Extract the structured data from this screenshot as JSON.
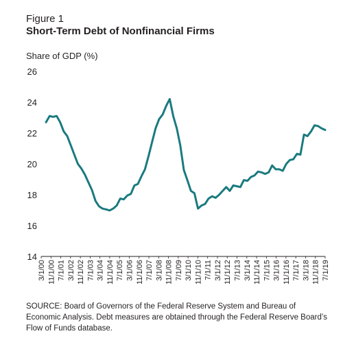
{
  "figure": {
    "label": "Figure 1",
    "title": "Short-Term Debt of Nonfinancial Firms",
    "source": "SOURCE: Board of Governors of the Federal Reserve System and Bureau of Economic Analysis. Debt measures are obtained through the Federal Reserve Board’s Flow of Funds database."
  },
  "chart_data": {
    "type": "line",
    "title": "Short-Term Debt of Nonfinancial Firms",
    "xlabel": "",
    "ylabel": "Share of GDP (%)",
    "ylim": [
      14,
      26
    ],
    "yticks": [
      14,
      16,
      18,
      20,
      22,
      24,
      26
    ],
    "grid": false,
    "line_color": "#1a7a7f",
    "xticks": [
      "3/1/00",
      "11/1/00",
      "7/1/01",
      "3/1/02",
      "11/1/02",
      "7/1/03",
      "3/1/04",
      "11/1/04",
      "7/1/05",
      "3/1/06",
      "11/1/06",
      "7/1/07",
      "3/1/08",
      "11/1/08",
      "7/1/09",
      "3/1/10",
      "11/1/10",
      "7/1/11",
      "3/1/12",
      "11/1/12",
      "7/1/13",
      "3/1/14",
      "11/1/14",
      "7/1/15",
      "3/1/16",
      "11/1/16",
      "7/1/17",
      "3/1/18",
      "11/1/18",
      "7/1/19"
    ],
    "series": [
      {
        "x": [
          "2000Q1",
          "2000Q2",
          "2000Q3",
          "2000Q4",
          "2001Q1",
          "2001Q2",
          "2001Q3",
          "2001Q4",
          "2002Q1",
          "2002Q2",
          "2002Q3",
          "2002Q4",
          "2003Q1",
          "2003Q2",
          "2003Q3",
          "2003Q4",
          "2004Q1",
          "2004Q2",
          "2004Q3",
          "2004Q4",
          "2005Q1",
          "2005Q2",
          "2005Q3",
          "2005Q4",
          "2006Q1",
          "2006Q2",
          "2006Q3",
          "2006Q4",
          "2007Q1",
          "2007Q2",
          "2007Q3",
          "2007Q4",
          "2008Q1",
          "2008Q2",
          "2008Q3",
          "2008Q4",
          "2009Q1",
          "2009Q2",
          "2009Q3",
          "2009Q4",
          "2010Q1",
          "2010Q2",
          "2010Q3",
          "2010Q4",
          "2011Q1",
          "2011Q2",
          "2011Q3",
          "2011Q4",
          "2012Q1",
          "2012Q2",
          "2012Q3",
          "2012Q4",
          "2013Q1",
          "2013Q2",
          "2013Q3",
          "2013Q4",
          "2014Q1",
          "2014Q2",
          "2014Q3",
          "2014Q4",
          "2015Q1",
          "2015Q2",
          "2015Q3",
          "2015Q4",
          "2016Q1",
          "2016Q2",
          "2016Q3",
          "2016Q4",
          "2017Q1",
          "2017Q2",
          "2017Q3",
          "2017Q4",
          "2018Q1",
          "2018Q2",
          "2018Q3",
          "2018Q4",
          "2019Q1",
          "2019Q2",
          "2019Q3",
          "2019Q4"
        ],
        "values": [
          22.7,
          23.1,
          23.05,
          23.1,
          22.7,
          22.1,
          21.8,
          21.2,
          20.6,
          20.0,
          19.7,
          19.3,
          18.8,
          18.3,
          17.6,
          17.25,
          17.1,
          17.05,
          16.98,
          17.1,
          17.3,
          17.75,
          17.7,
          17.95,
          18.05,
          18.6,
          18.7,
          19.2,
          19.65,
          20.5,
          21.4,
          22.3,
          22.9,
          23.2,
          23.75,
          24.2,
          23.1,
          22.3,
          21.2,
          19.6,
          18.95,
          18.25,
          18.1,
          17.1,
          17.3,
          17.4,
          17.75,
          17.9,
          17.8,
          18.0,
          18.25,
          18.5,
          18.25,
          18.6,
          18.55,
          18.5,
          18.95,
          18.9,
          19.15,
          19.25,
          19.5,
          19.45,
          19.35,
          19.45,
          19.9,
          19.65,
          19.65,
          19.55,
          20.0,
          20.25,
          20.3,
          20.65,
          20.6,
          21.9,
          21.8,
          22.1,
          22.5,
          22.45,
          22.3,
          22.2
        ]
      }
    ]
  }
}
